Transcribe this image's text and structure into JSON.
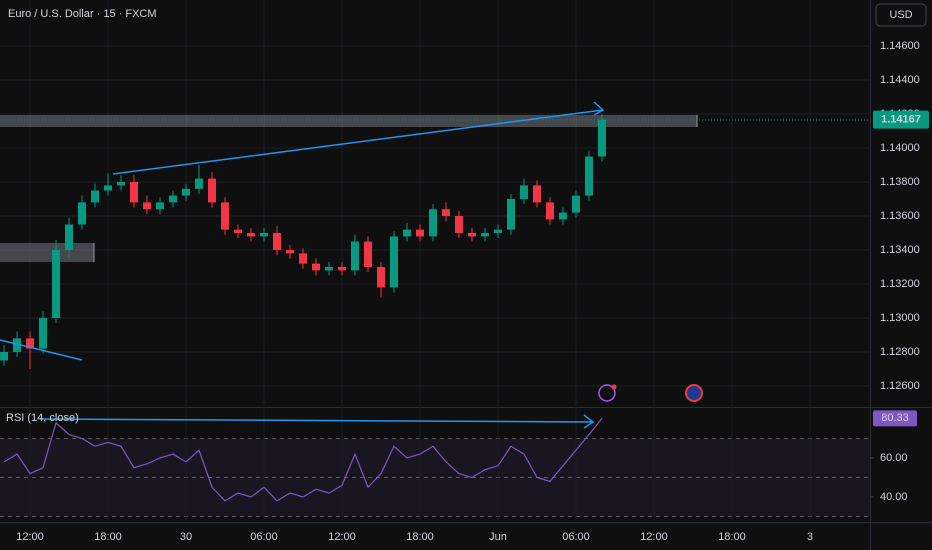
{
  "header": {
    "symbol": "Euro / U.S. Dollar · 15 · FXCM",
    "currency": "USD",
    "indicator": "RSI (14, close)"
  },
  "chart_data": [
    {
      "type": "candlestick",
      "up_color": "#089981",
      "down_color": "#f23645",
      "x": [
        -2,
        -1,
        0,
        1,
        2,
        3,
        4,
        5,
        6,
        7,
        8,
        9,
        10,
        11,
        12,
        13,
        14,
        15,
        16,
        17,
        18,
        19,
        20,
        21,
        22,
        23,
        24,
        25,
        26,
        27,
        28,
        29,
        30,
        31,
        32,
        33,
        34,
        35,
        36,
        37,
        38,
        39,
        40,
        41,
        42,
        43,
        44
      ],
      "open": [
        1.1275,
        1.128,
        1.1288,
        1.1282,
        1.13,
        1.134,
        1.1355,
        1.1368,
        1.1375,
        1.1378,
        1.138,
        1.1368,
        1.1364,
        1.1368,
        1.1372,
        1.1376,
        1.1382,
        1.1368,
        1.1352,
        1.135,
        1.1348,
        1.135,
        1.134,
        1.1338,
        1.1332,
        1.1328,
        1.133,
        1.1328,
        1.1345,
        1.133,
        1.1318,
        1.1348,
        1.1352,
        1.1348,
        1.1364,
        1.136,
        1.135,
        1.1348,
        1.135,
        1.1352,
        1.137,
        1.1378,
        1.1368,
        1.1358,
        1.1362,
        1.1372,
        1.1395
      ],
      "high": [
        1.1284,
        1.1292,
        1.1292,
        1.1304,
        1.1346,
        1.1359,
        1.1372,
        1.1379,
        1.1385,
        1.1384,
        1.1384,
        1.1372,
        1.1371,
        1.1375,
        1.1379,
        1.139,
        1.1386,
        1.1371,
        1.1355,
        1.1353,
        1.1353,
        1.1354,
        1.1343,
        1.1341,
        1.1335,
        1.1333,
        1.1333,
        1.1349,
        1.1348,
        1.1333,
        1.1351,
        1.1356,
        1.1355,
        1.1367,
        1.1368,
        1.1363,
        1.1353,
        1.1353,
        1.1355,
        1.1373,
        1.1382,
        1.1381,
        1.1371,
        1.1365,
        1.1375,
        1.1398,
        1.142
      ],
      "low": [
        1.1272,
        1.1277,
        1.127,
        1.1279,
        1.1297,
        1.1336,
        1.1352,
        1.1365,
        1.1372,
        1.1375,
        1.1365,
        1.1361,
        1.1361,
        1.1365,
        1.1369,
        1.1373,
        1.1365,
        1.1349,
        1.1347,
        1.1345,
        1.1345,
        1.1337,
        1.1335,
        1.1329,
        1.1325,
        1.1325,
        1.1325,
        1.1325,
        1.1327,
        1.1312,
        1.1315,
        1.1345,
        1.1345,
        1.1345,
        1.1357,
        1.1347,
        1.1345,
        1.1345,
        1.1347,
        1.1349,
        1.1367,
        1.1365,
        1.1355,
        1.1355,
        1.1359,
        1.1369,
        1.1392
      ],
      "close": [
        1.128,
        1.1288,
        1.1282,
        1.13,
        1.134,
        1.1355,
        1.1368,
        1.1375,
        1.1378,
        1.138,
        1.1368,
        1.1364,
        1.1368,
        1.1372,
        1.1376,
        1.1382,
        1.1368,
        1.1352,
        1.135,
        1.1348,
        1.135,
        1.134,
        1.1338,
        1.1332,
        1.1328,
        1.133,
        1.1328,
        1.1345,
        1.133,
        1.1318,
        1.1348,
        1.1352,
        1.1348,
        1.1364,
        1.136,
        1.135,
        1.1348,
        1.135,
        1.1352,
        1.137,
        1.1378,
        1.1368,
        1.1358,
        1.1362,
        1.1372,
        1.1395,
        1.14167
      ],
      "xlim": [
        -2.31,
        64.62
      ],
      "ylim": [
        1.12488,
        1.14871
      ],
      "yticks": [
        {
          "value": 1.126,
          "label": "1.12600"
        },
        {
          "value": 1.128,
          "label": "1.12800"
        },
        {
          "value": 1.13,
          "label": "1.13000"
        },
        {
          "value": 1.132,
          "label": "1.13200"
        },
        {
          "value": 1.134,
          "label": "1.13400"
        },
        {
          "value": 1.136,
          "label": "1.13600"
        },
        {
          "value": 1.138,
          "label": "1.13800"
        },
        {
          "value": 1.14,
          "label": "1.14000"
        },
        {
          "value": 1.142,
          "label": "1.14200"
        },
        {
          "value": 1.144,
          "label": "1.14400"
        },
        {
          "value": 1.146,
          "label": "1.14600"
        }
      ]
    },
    {
      "type": "line",
      "color": "#7e57c2",
      "x": [
        -2,
        -1,
        0,
        1,
        2,
        3,
        4,
        5,
        6,
        7,
        8,
        9,
        10,
        11,
        12,
        13,
        14,
        15,
        16,
        17,
        18,
        19,
        20,
        21,
        22,
        23,
        24,
        25,
        26,
        27,
        28,
        29,
        30,
        31,
        32,
        33,
        34,
        35,
        36,
        37,
        38,
        39,
        40,
        41,
        42,
        43,
        44
      ],
      "values": [
        58,
        62,
        52,
        55,
        78,
        72,
        70,
        66,
        68,
        66,
        55,
        57,
        60,
        62,
        58,
        64,
        45,
        38,
        42,
        40,
        45,
        38,
        42,
        40,
        44,
        42,
        46,
        62,
        45,
        52,
        66,
        60,
        62,
        66,
        58,
        52,
        50,
        54,
        56,
        66,
        62,
        50,
        48,
        56,
        64,
        72,
        80.33
      ],
      "levels": [
        70,
        50,
        30
      ],
      "xlim": [
        -2.31,
        64.62
      ],
      "ylim": [
        28.2,
        84.6
      ],
      "yticks": [
        {
          "value": 40,
          "label": "40.00"
        },
        {
          "value": 60,
          "label": "60.00"
        }
      ],
      "xticks": [
        {
          "value": 0,
          "label": "12:00"
        },
        {
          "value": 6,
          "label": "18:00"
        },
        {
          "value": 12,
          "label": "30"
        },
        {
          "value": 18,
          "label": "06:00"
        },
        {
          "value": 24,
          "label": "12:00"
        },
        {
          "value": 30,
          "label": "18:00"
        },
        {
          "value": 36,
          "label": "Jun"
        },
        {
          "value": 42,
          "label": "06:00"
        },
        {
          "value": 48,
          "label": "12:00"
        },
        {
          "value": 54,
          "label": "18:00"
        },
        {
          "value": 60,
          "label": "3"
        }
      ]
    }
  ]
}
